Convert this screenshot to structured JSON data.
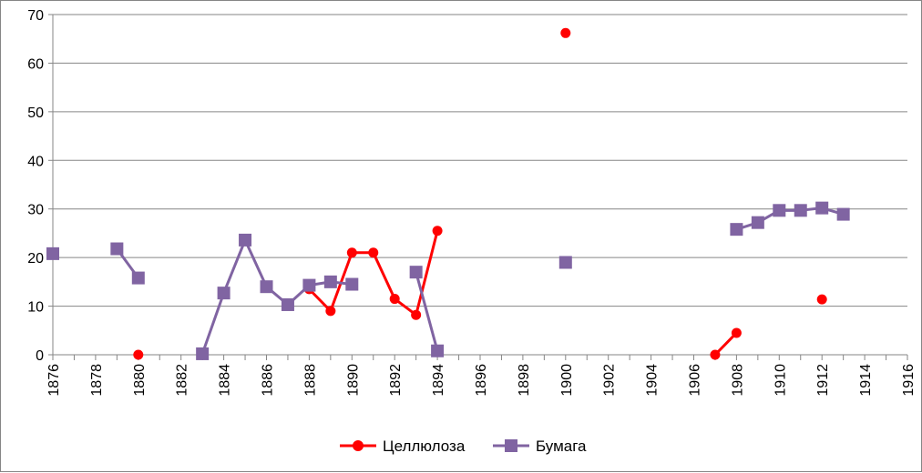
{
  "chart_data": {
    "type": "line",
    "title": "",
    "xlabel": "",
    "ylabel": "",
    "xlim": [
      1876,
      1916
    ],
    "ylim": [
      0,
      70
    ],
    "x_ticks": [
      "1876",
      "1878",
      "1880",
      "1882",
      "1884",
      "1886",
      "1888",
      "1890",
      "1892",
      "1894",
      "1896",
      "1898",
      "1900",
      "1902",
      "1904",
      "1906",
      "1908",
      "1910",
      "1912",
      "1914",
      "1916"
    ],
    "y_ticks": [
      "0",
      "10",
      "20",
      "30",
      "40",
      "50",
      "60",
      "70"
    ],
    "grid": true,
    "legend_position": "bottom",
    "series": [
      {
        "name": "Целлюлоза",
        "color": "#ff0000",
        "marker": "circle",
        "points": [
          [
            1880,
            0
          ],
          [
            1888,
            13.5
          ],
          [
            1889,
            9
          ],
          [
            1890,
            21
          ],
          [
            1891,
            21
          ],
          [
            1892,
            11.5
          ],
          [
            1893,
            8.2
          ],
          [
            1894,
            25.5
          ],
          [
            1900,
            66.2
          ],
          [
            1907,
            0
          ],
          [
            1908,
            4.5
          ],
          [
            1912,
            11.4
          ]
        ],
        "segments": [
          [
            0
          ],
          [
            1,
            2,
            3,
            4,
            5,
            6,
            7
          ],
          [
            8
          ],
          [
            9,
            10
          ],
          [
            11
          ]
        ]
      },
      {
        "name": "Бумага",
        "color": "#8064a2",
        "marker": "square",
        "points": [
          [
            1876,
            20.8
          ],
          [
            1879,
            21.8
          ],
          [
            1880,
            15.8
          ],
          [
            1883,
            0.2
          ],
          [
            1884,
            12.7
          ],
          [
            1885,
            23.6
          ],
          [
            1886,
            14
          ],
          [
            1887,
            10.3
          ],
          [
            1888,
            14.3
          ],
          [
            1889,
            15
          ],
          [
            1890,
            14.5
          ],
          [
            1893,
            17
          ],
          [
            1894,
            0.8
          ],
          [
            1900,
            19
          ],
          [
            1908,
            25.8
          ],
          [
            1909,
            27.2
          ],
          [
            1910,
            29.7
          ],
          [
            1911,
            29.7
          ],
          [
            1912,
            30.2
          ],
          [
            1913,
            28.9
          ]
        ],
        "segments": [
          [
            0
          ],
          [
            1,
            2
          ],
          [
            3,
            4,
            5,
            6,
            7,
            8,
            9,
            10
          ],
          [
            11,
            12
          ],
          [
            13
          ],
          [
            14,
            15,
            16,
            17,
            18,
            19
          ]
        ]
      }
    ]
  },
  "legend": {
    "items": [
      "Целлюлоза",
      "Бумага"
    ]
  }
}
